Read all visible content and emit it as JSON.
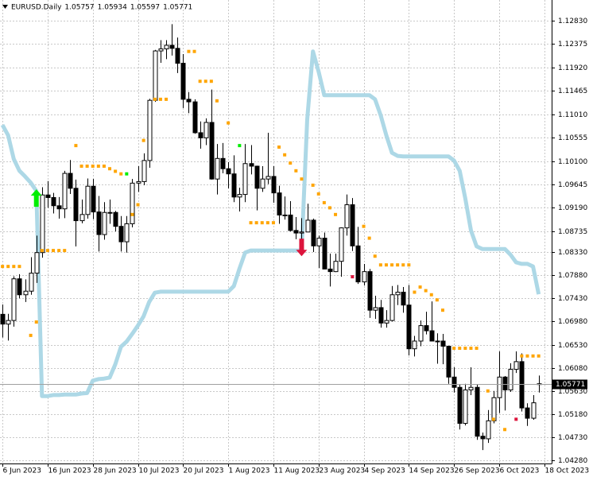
{
  "chart_data": {
    "type": "candlestick",
    "symbol": "EURUSD.Daily",
    "header_values": [
      1.05757,
      1.05934,
      1.05597,
      1.05771
    ],
    "current_price": 1.05771,
    "open": [
      1.0712,
      1.0693,
      1.07,
      1.0781,
      1.075,
      1.0757,
      1.0792,
      1.0832,
      1.0944,
      1.0939,
      1.0923,
      1.0917,
      1.0986,
      1.0957,
      1.0894,
      1.0906,
      1.0961,
      1.0911,
      1.0867,
      1.091,
      1.091,
      1.0883,
      1.0853,
      1.0888,
      1.0967,
      1.097,
      1.1011,
      1.1128,
      1.1224,
      1.1228,
      1.1235,
      1.1229,
      1.12,
      1.113,
      1.1125,
      1.1065,
      1.1055,
      1.1085,
      1.0975,
      1.1015,
      1.0995,
      1.0985,
      1.094,
      1.0945,
      1.1005,
      1.1,
      1.0957,
      1.0975,
      1.098,
      1.0948,
      1.0905,
      1.0905,
      1.0875,
      1.087,
      1.0872,
      1.0895,
      1.0845,
      1.086,
      1.08,
      1.0795,
      1.0815,
      1.088,
      1.0925,
      1.0845,
      1.0775,
      1.0795,
      1.072,
      1.0725,
      1.0695,
      1.07,
      1.075,
      1.0755,
      1.073,
      1.0645,
      1.066,
      1.069,
      1.068,
      1.066,
      1.066,
      1.065,
      1.059,
      1.057,
      1.05,
      1.0565,
      1.057,
      1.0475,
      1.047,
      1.0505,
      1.055,
      1.059,
      1.0565,
      1.0605,
      1.062,
      1.053,
      1.051,
      1.0576
    ],
    "high": [
      1.0731,
      1.0713,
      1.0786,
      1.079,
      1.078,
      1.0823,
      1.0865,
      1.0959,
      1.0971,
      1.0948,
      1.094,
      1.0991,
      1.1012,
      1.0974,
      1.0935,
      1.0976,
      1.0975,
      1.0942,
      1.093,
      1.0935,
      1.0913,
      1.0903,
      1.0903,
      1.0975,
      1.1,
      1.1025,
      1.1131,
      1.1226,
      1.1245,
      1.1245,
      1.1276,
      1.125,
      1.1218,
      1.1144,
      1.113,
      1.1087,
      1.1093,
      1.1149,
      1.1043,
      1.1045,
      1.1008,
      1.1021,
      1.0958,
      1.1043,
      1.1041,
      1.1001,
      1.1,
      1.1065,
      1.1,
      1.0962,
      1.0941,
      1.0932,
      1.0901,
      1.0899,
      1.0927,
      1.0898,
      1.0865,
      1.0871,
      1.083,
      1.083,
      1.0881,
      1.0945,
      1.0938,
      1.0882,
      1.081,
      1.08,
      1.0748,
      1.074,
      1.072,
      1.0767,
      1.0769,
      1.0765,
      1.0769,
      1.067,
      1.07,
      1.0717,
      1.0737,
      1.0675,
      1.0674,
      1.0651,
      1.0609,
      1.0575,
      1.0577,
      1.0609,
      1.0575,
      1.0482,
      1.0526,
      1.0563,
      1.064,
      1.0592,
      1.0617,
      1.064,
      1.0636,
      1.0539,
      1.0555,
      1.0593
    ],
    "low": [
      1.0667,
      1.0661,
      1.0688,
      1.0743,
      1.0736,
      1.075,
      1.0773,
      1.0822,
      1.0919,
      1.0908,
      1.0898,
      1.0899,
      1.0946,
      1.0844,
      1.0889,
      1.0898,
      1.0897,
      1.0834,
      1.0857,
      1.0888,
      1.0873,
      1.0834,
      1.0832,
      1.0881,
      1.095,
      1.0963,
      1.0997,
      1.1125,
      1.1201,
      1.1208,
      1.1215,
      1.1181,
      1.1113,
      1.1103,
      1.1063,
      1.1034,
      1.1041,
      1.0974,
      1.0945,
      1.0986,
      1.0957,
      1.093,
      1.0912,
      1.093,
      1.0984,
      1.0914,
      1.095,
      1.0965,
      1.0929,
      1.0888,
      1.0896,
      1.0873,
      1.0858,
      1.0845,
      1.0872,
      1.0833,
      1.0802,
      1.08,
      1.0766,
      1.0794,
      1.0785,
      1.0865,
      1.0835,
      1.0771,
      1.0768,
      1.0705,
      1.0703,
      1.0686,
      1.0686,
      1.0698,
      1.073,
      1.0715,
      1.0632,
      1.063,
      1.065,
      1.0673,
      1.066,
      1.0616,
      1.0615,
      1.0577,
      1.056,
      1.0488,
      1.0496,
      1.0555,
      1.0468,
      1.0448,
      1.0462,
      1.05,
      1.052,
      1.0525,
      1.0561,
      1.0598,
      1.0523,
      1.0495,
      1.0507,
      1.056
    ],
    "close": [
      1.0693,
      1.07,
      1.0781,
      1.075,
      1.0757,
      1.0792,
      1.0832,
      1.0944,
      1.0939,
      1.0923,
      1.0917,
      1.0986,
      1.0957,
      1.0894,
      1.0906,
      1.0961,
      1.0911,
      1.0867,
      1.091,
      1.091,
      1.0883,
      1.0853,
      1.0888,
      1.0967,
      1.097,
      1.1011,
      1.1128,
      1.1224,
      1.1228,
      1.1235,
      1.1229,
      1.12,
      1.113,
      1.1125,
      1.1065,
      1.1055,
      1.1085,
      1.0975,
      1.1015,
      1.0995,
      1.0985,
      1.094,
      1.0945,
      1.1005,
      1.1,
      1.0957,
      1.0975,
      1.098,
      1.0948,
      1.0905,
      1.0905,
      1.0875,
      1.087,
      1.0872,
      1.0895,
      1.0845,
      1.086,
      1.08,
      1.0795,
      1.0815,
      1.088,
      1.0925,
      1.0845,
      1.0775,
      1.0795,
      1.072,
      1.0725,
      1.0695,
      1.07,
      1.075,
      1.0755,
      1.073,
      1.0645,
      1.066,
      1.069,
      1.068,
      1.066,
      1.066,
      1.065,
      1.059,
      1.057,
      1.05,
      1.0565,
      1.057,
      1.0475,
      1.047,
      1.0505,
      1.055,
      1.059,
      1.0565,
      1.0605,
      1.062,
      1.053,
      1.051,
      1.054,
      1.0577
    ],
    "bull_color": "#ffffff",
    "bear_color": "#000000",
    "outline_color": "#000000",
    "overlays": [
      {
        "type": "line",
        "color": "#add8e6",
        "values": [
          1.108,
          1.106,
          1.1014,
          1.0991,
          1.098,
          1.0968,
          1.0952,
          1.0553,
          1.0553,
          1.0555,
          1.0555,
          1.0556,
          1.0556,
          1.0556,
          1.0558,
          1.0559,
          1.0583,
          1.0586,
          1.0587,
          1.0589,
          1.0615,
          1.0649,
          1.0659,
          1.0674,
          1.069,
          1.0708,
          1.0736,
          1.0754,
          1.0756,
          1.0756,
          1.0756,
          1.0756,
          1.0756,
          1.0756,
          1.0756,
          1.0756,
          1.0756,
          1.0756,
          1.0756,
          1.0756,
          1.0756,
          1.0767,
          1.0801,
          1.0832,
          1.0836,
          1.0836,
          1.0836,
          1.0836,
          1.0836,
          1.0836,
          1.0836,
          1.0836,
          1.0836,
          1.0836,
          1.1091,
          1.1223,
          1.1184,
          1.1138,
          1.1138,
          1.1138,
          1.1138,
          1.1138,
          1.1138,
          1.1138,
          1.1138,
          1.1138,
          1.113,
          1.1099,
          1.106,
          1.1026,
          1.102,
          1.1019,
          1.1019,
          1.1019,
          1.1019,
          1.1019,
          1.1019,
          1.1019,
          1.1019,
          1.1019,
          1.1011,
          1.0991,
          1.0937,
          1.0875,
          1.0844,
          1.0839,
          1.0839,
          1.0839,
          1.0839,
          1.0839,
          1.0828,
          1.0813,
          1.081,
          1.081,
          1.0805,
          1.0751
        ]
      },
      {
        "type": "dots",
        "color": "#ffa500",
        "values": [
          1.0805,
          1.0805,
          1.0805,
          1.0805,
          null,
          1.0671,
          1.0697,
          1.0836,
          1.0836,
          1.0836,
          1.0836,
          1.0836,
          null,
          1.104,
          1.1,
          1.1,
          1.1,
          1.1,
          1.1,
          1.0995,
          1.099,
          1.0985,
          null,
          1.0906,
          1.0925,
          1.105,
          null,
          1.113,
          1.113,
          1.113,
          null,
          null,
          null,
          1.1223,
          1.1223,
          1.1165,
          1.1165,
          1.1165,
          1.1127,
          null,
          1.1084,
          null,
          null,
          null,
          1.089,
          1.089,
          1.089,
          1.089,
          1.089,
          1.1037,
          1.1022,
          1.1006,
          1.0991,
          1.0975,
          null,
          1.0963,
          1.0946,
          1.0929,
          1.0919,
          1.0906,
          null,
          null,
          null,
          null,
          1.0883,
          1.086,
          1.0825,
          1.0808,
          1.0808,
          1.0808,
          1.0808,
          1.0808,
          1.0808,
          1.0755,
          1.0765,
          1.0758,
          1.075,
          1.074,
          1.072,
          null,
          1.0646,
          1.0646,
          1.0646,
          1.0646,
          1.0646,
          null,
          1.0563,
          1.0508,
          null,
          1.0488,
          null,
          null,
          1.0631,
          1.0631,
          1.0631,
          1.0631
        ]
      },
      {
        "type": "dots",
        "color": "#00ee00",
        "values": [
          null,
          null,
          null,
          null,
          null,
          null,
          null,
          null,
          null,
          null,
          null,
          null,
          null,
          null,
          null,
          null,
          null,
          null,
          null,
          null,
          null,
          null,
          1.0985,
          null,
          null,
          null,
          null,
          null,
          null,
          null,
          null,
          null,
          null,
          null,
          null,
          null,
          null,
          null,
          null,
          null,
          null,
          null,
          1.104,
          null,
          null,
          null,
          null,
          null,
          null,
          null,
          null,
          null,
          null,
          null,
          null,
          null,
          null,
          null,
          null,
          null,
          null,
          null,
          null,
          null,
          null,
          null,
          null,
          null,
          null,
          null,
          null,
          null,
          null,
          null,
          null,
          null,
          null,
          null,
          null,
          null,
          null,
          null,
          null,
          null,
          null,
          null,
          null,
          null,
          null,
          null,
          null,
          null,
          null,
          null,
          null,
          null
        ]
      },
      {
        "type": "dots",
        "color": "#dc143c",
        "values": [
          null,
          null,
          null,
          null,
          null,
          null,
          null,
          null,
          null,
          null,
          null,
          null,
          null,
          null,
          null,
          null,
          null,
          null,
          null,
          null,
          null,
          null,
          null,
          null,
          null,
          null,
          null,
          null,
          null,
          null,
          null,
          null,
          null,
          null,
          null,
          null,
          null,
          null,
          null,
          null,
          null,
          null,
          null,
          null,
          null,
          null,
          null,
          null,
          null,
          null,
          null,
          null,
          null,
          null,
          null,
          null,
          null,
          null,
          null,
          null,
          null,
          null,
          1.0785,
          null,
          null,
          null,
          null,
          null,
          null,
          null,
          null,
          null,
          null,
          null,
          null,
          null,
          null,
          null,
          null,
          null,
          null,
          null,
          null,
          null,
          null,
          null,
          null,
          null,
          null,
          null,
          null,
          1.0508,
          null,
          null,
          null,
          null
        ]
      },
      {
        "type": "arrow_up",
        "color": "#00ee00",
        "values": [
          null,
          null,
          null,
          null,
          null,
          null,
          1.0955,
          null,
          null,
          null,
          null,
          null,
          null,
          null,
          null,
          null,
          null,
          null,
          null,
          null,
          null,
          null,
          null,
          null,
          null,
          null,
          null,
          null,
          null,
          null,
          null,
          null,
          null,
          null,
          null,
          null,
          null,
          null,
          null,
          null,
          null,
          null,
          null,
          null,
          null,
          null,
          null,
          null,
          null,
          null,
          null,
          null,
          null,
          null,
          null,
          null,
          null,
          null,
          null,
          null,
          null,
          null,
          null,
          null,
          null,
          null,
          null,
          null,
          null,
          null,
          null,
          null,
          null,
          null,
          null,
          null,
          null,
          null,
          null,
          null,
          null,
          null,
          null,
          null,
          null,
          null,
          null,
          null,
          null,
          null,
          null,
          null,
          null,
          null,
          null,
          null
        ]
      },
      {
        "type": "arrow_down",
        "color": "#dc143c",
        "values": [
          null,
          null,
          null,
          null,
          null,
          null,
          null,
          null,
          null,
          null,
          null,
          null,
          null,
          null,
          null,
          null,
          null,
          null,
          null,
          null,
          null,
          null,
          null,
          null,
          null,
          null,
          null,
          null,
          null,
          null,
          null,
          null,
          null,
          null,
          null,
          null,
          null,
          null,
          null,
          null,
          null,
          null,
          null,
          null,
          null,
          null,
          null,
          null,
          null,
          null,
          null,
          null,
          null,
          1.0825,
          null,
          null,
          null,
          null,
          null,
          null,
          null,
          null,
          null,
          null,
          null,
          null,
          null,
          null,
          null,
          null,
          null,
          null,
          null,
          null,
          null,
          null,
          null,
          null,
          null,
          null,
          null,
          null,
          null,
          null,
          null,
          null,
          null,
          null,
          null,
          null,
          null,
          null,
          null,
          null,
          null,
          null
        ]
      }
    ],
    "xlim": [
      -0.44,
      97.3
    ],
    "xticks": [
      {
        "value": 0,
        "label": "6 Jun 2023"
      },
      {
        "value": 8,
        "label": "16 Jun 2023"
      },
      {
        "value": 16,
        "label": "28 Jun 2023"
      },
      {
        "value": 24,
        "label": "10 Jul 2023"
      },
      {
        "value": 32,
        "label": "20 Jul 2023"
      },
      {
        "value": 40,
        "label": "1 Aug 2023"
      },
      {
        "value": 48,
        "label": "11 Aug 2023"
      },
      {
        "value": 56,
        "label": "23 Aug 2023"
      },
      {
        "value": 64,
        "label": "4 Sep 2023"
      },
      {
        "value": 72,
        "label": "14 Sep 2023"
      },
      {
        "value": 80,
        "label": "26 Sep 2023"
      },
      {
        "value": 88,
        "label": "6 Oct 2023"
      },
      {
        "value": 96,
        "label": "18 Oct 2023"
      }
    ],
    "ylim": [
      1.0422,
      1.1323
    ],
    "yticks": [
      {
        "value": 1.1283,
        "label": "1.12830"
      },
      {
        "value": 1.12375,
        "label": "1.12375"
      },
      {
        "value": 1.1192,
        "label": "1.11920"
      },
      {
        "value": 1.11465,
        "label": "1.11465"
      },
      {
        "value": 1.1101,
        "label": "1.11010"
      },
      {
        "value": 1.10555,
        "label": "1.10555"
      },
      {
        "value": 1.101,
        "label": "1.10100"
      },
      {
        "value": 1.09645,
        "label": "1.09645"
      },
      {
        "value": 1.0919,
        "label": "1.09190"
      },
      {
        "value": 1.08735,
        "label": "1.08735"
      },
      {
        "value": 1.0833,
        "label": "1.08330"
      },
      {
        "value": 1.0788,
        "label": "1.07880"
      },
      {
        "value": 1.0743,
        "label": "1.07430"
      },
      {
        "value": 1.0698,
        "label": "1.06980"
      },
      {
        "value": 1.0653,
        "label": "1.06530"
      },
      {
        "value": 1.0608,
        "label": "1.06080"
      },
      {
        "value": 1.0563,
        "label": "1.05630"
      },
      {
        "value": 1.0518,
        "label": "1.05180"
      },
      {
        "value": 1.0473,
        "label": "1.04730"
      },
      {
        "value": 1.0428,
        "label": "1.04280"
      }
    ],
    "grid": true
  }
}
